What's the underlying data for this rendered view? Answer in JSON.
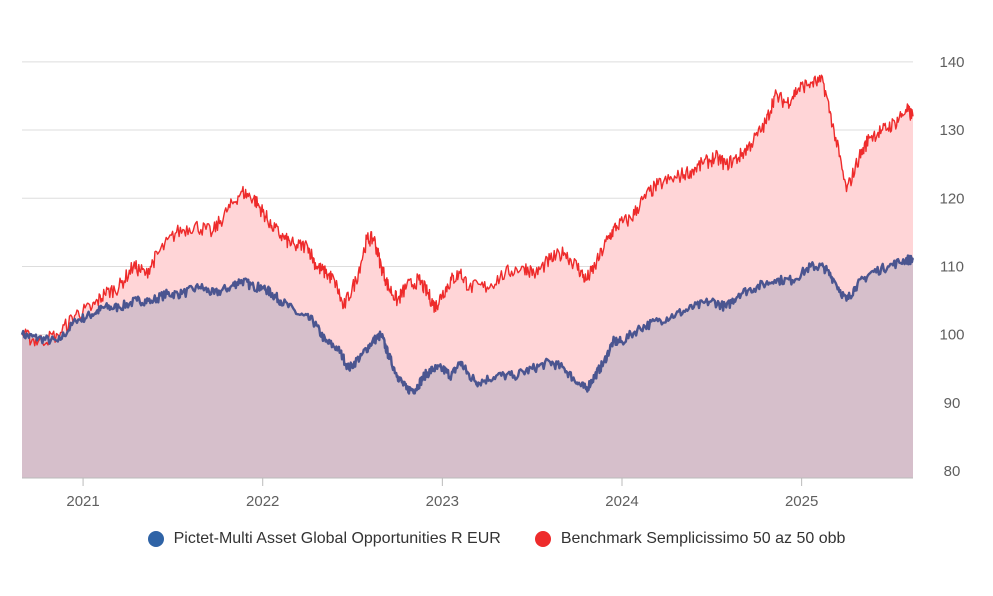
{
  "colors": {
    "fund_line": "#4b5590",
    "fund_fill": "#d6bfcb",
    "bench_line": "#ee2b2b",
    "bench_fill": "#ffd5d7",
    "grid": "#dddddd",
    "axis": "#bbbbbb",
    "legend_fund": "#2f63a6",
    "legend_bench": "#ee2b2b"
  },
  "chart_data": {
    "type": "area",
    "title": "",
    "xlabel": "",
    "ylabel": "",
    "x_range": [
      2020.66,
      2025.62
    ],
    "ylim": [
      79,
      141
    ],
    "y_ticks": [
      80,
      90,
      100,
      110,
      120,
      130,
      140
    ],
    "x_ticks": [
      {
        "value": 2021,
        "label": "2021"
      },
      {
        "value": 2022,
        "label": "2022"
      },
      {
        "value": 2023,
        "label": "2023"
      },
      {
        "value": 2024,
        "label": "2024"
      },
      {
        "value": 2025,
        "label": "2025"
      }
    ],
    "grid": true,
    "legend_position": "bottom",
    "series": [
      {
        "name": "Pictet-Multi Asset Global Opportunities R EUR",
        "points": [
          [
            2020.66,
            100
          ],
          [
            2020.75,
            99.5
          ],
          [
            2020.86,
            99
          ],
          [
            2020.96,
            102
          ],
          [
            2021.05,
            103
          ],
          [
            2021.12,
            104
          ],
          [
            2021.2,
            104
          ],
          [
            2021.3,
            105
          ],
          [
            2021.38,
            105
          ],
          [
            2021.47,
            106
          ],
          [
            2021.55,
            106
          ],
          [
            2021.65,
            107
          ],
          [
            2021.73,
            106
          ],
          [
            2021.82,
            107
          ],
          [
            2021.88,
            108
          ],
          [
            2021.95,
            107
          ],
          [
            2022.0,
            107
          ],
          [
            2022.05,
            106
          ],
          [
            2022.1,
            105
          ],
          [
            2022.2,
            103
          ],
          [
            2022.28,
            102
          ],
          [
            2022.35,
            99
          ],
          [
            2022.42,
            98
          ],
          [
            2022.48,
            95
          ],
          [
            2022.55,
            97
          ],
          [
            2022.61,
            99
          ],
          [
            2022.66,
            100
          ],
          [
            2022.7,
            97
          ],
          [
            2022.75,
            94
          ],
          [
            2022.8,
            92
          ],
          [
            2022.85,
            92
          ],
          [
            2022.9,
            94
          ],
          [
            2022.95,
            95
          ],
          [
            2023.0,
            95
          ],
          [
            2023.05,
            94
          ],
          [
            2023.1,
            96
          ],
          [
            2023.15,
            94
          ],
          [
            2023.2,
            93
          ],
          [
            2023.3,
            94
          ],
          [
            2023.4,
            94
          ],
          [
            2023.5,
            95
          ],
          [
            2023.6,
            96
          ],
          [
            2023.68,
            95
          ],
          [
            2023.75,
            93
          ],
          [
            2023.8,
            92
          ],
          [
            2023.85,
            94
          ],
          [
            2023.9,
            96
          ],
          [
            2023.95,
            99
          ],
          [
            2024.0,
            99
          ],
          [
            2024.1,
            101
          ],
          [
            2024.2,
            102
          ],
          [
            2024.3,
            103
          ],
          [
            2024.4,
            104
          ],
          [
            2024.5,
            105
          ],
          [
            2024.58,
            104
          ],
          [
            2024.65,
            106
          ],
          [
            2024.75,
            107
          ],
          [
            2024.85,
            108
          ],
          [
            2024.95,
            108
          ],
          [
            2025.05,
            110
          ],
          [
            2025.12,
            110
          ],
          [
            2025.18,
            108
          ],
          [
            2025.25,
            105
          ],
          [
            2025.3,
            107
          ],
          [
            2025.38,
            109
          ],
          [
            2025.48,
            110
          ],
          [
            2025.58,
            111
          ],
          [
            2025.62,
            111
          ]
        ]
      },
      {
        "name": "Benchmark Semplicissimo 50 az 50 obb",
        "points": [
          [
            2020.66,
            100
          ],
          [
            2020.75,
            99
          ],
          [
            2020.86,
            100
          ],
          [
            2020.96,
            103
          ],
          [
            2021.05,
            104
          ],
          [
            2021.12,
            106
          ],
          [
            2021.2,
            107
          ],
          [
            2021.28,
            110
          ],
          [
            2021.35,
            109
          ],
          [
            2021.42,
            112
          ],
          [
            2021.52,
            115
          ],
          [
            2021.62,
            116
          ],
          [
            2021.72,
            115
          ],
          [
            2021.8,
            118
          ],
          [
            2021.88,
            121
          ],
          [
            2021.95,
            120
          ],
          [
            2022.0,
            118
          ],
          [
            2022.05,
            116
          ],
          [
            2022.12,
            114
          ],
          [
            2022.18,
            113
          ],
          [
            2022.25,
            113
          ],
          [
            2022.3,
            110
          ],
          [
            2022.35,
            109
          ],
          [
            2022.4,
            108
          ],
          [
            2022.45,
            104
          ],
          [
            2022.52,
            108
          ],
          [
            2022.58,
            114
          ],
          [
            2022.62,
            114
          ],
          [
            2022.66,
            110
          ],
          [
            2022.7,
            107
          ],
          [
            2022.75,
            105
          ],
          [
            2022.8,
            107
          ],
          [
            2022.87,
            108
          ],
          [
            2022.92,
            106
          ],
          [
            2022.96,
            104
          ],
          [
            2023.0,
            106
          ],
          [
            2023.05,
            108
          ],
          [
            2023.1,
            109
          ],
          [
            2023.15,
            107
          ],
          [
            2023.25,
            107
          ],
          [
            2023.35,
            109
          ],
          [
            2023.45,
            110
          ],
          [
            2023.52,
            109
          ],
          [
            2023.6,
            111
          ],
          [
            2023.68,
            112
          ],
          [
            2023.75,
            110
          ],
          [
            2023.8,
            108
          ],
          [
            2023.85,
            110
          ],
          [
            2023.92,
            114
          ],
          [
            2023.97,
            116
          ],
          [
            2024.05,
            117
          ],
          [
            2024.12,
            120
          ],
          [
            2024.2,
            122
          ],
          [
            2024.3,
            123
          ],
          [
            2024.38,
            124
          ],
          [
            2024.45,
            125
          ],
          [
            2024.52,
            126
          ],
          [
            2024.58,
            125
          ],
          [
            2024.65,
            126
          ],
          [
            2024.72,
            128
          ],
          [
            2024.8,
            131
          ],
          [
            2024.85,
            135
          ],
          [
            2024.92,
            134
          ],
          [
            2024.98,
            136
          ],
          [
            2025.05,
            137
          ],
          [
            2025.12,
            137
          ],
          [
            2025.18,
            130
          ],
          [
            2025.25,
            121
          ],
          [
            2025.32,
            126
          ],
          [
            2025.38,
            129
          ],
          [
            2025.45,
            130
          ],
          [
            2025.52,
            131
          ],
          [
            2025.58,
            133
          ],
          [
            2025.62,
            132
          ]
        ]
      }
    ]
  }
}
